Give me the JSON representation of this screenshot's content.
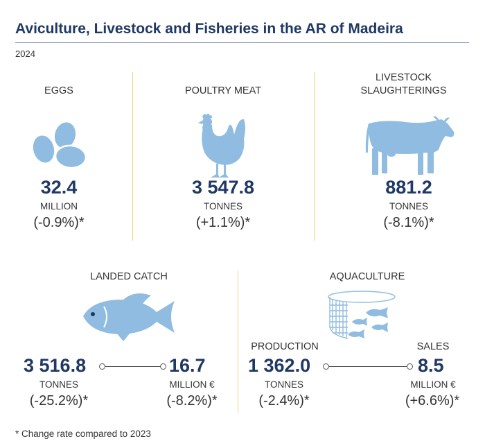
{
  "title": "Aviculture, Livestock and Fisheries in the AR of Madeira",
  "year": "2024",
  "colors": {
    "icon": "#8fbce0",
    "accent": "#f2d27a",
    "text": "#1f3864"
  },
  "cards": {
    "eggs": {
      "label": "EGGS",
      "value": "32.4",
      "unit": "MILLION",
      "change": "(-0.9%)*",
      "icon": "eggs-icon"
    },
    "poultry": {
      "label": "POULTRY MEAT",
      "value": "3 547.8",
      "unit": "TONNES",
      "change": "(+1.1%)*",
      "icon": "chicken-icon"
    },
    "livestock": {
      "label_line1": "LIVESTOCK",
      "label_line2": "SLAUGHTERINGS",
      "value": "881.2",
      "unit": "TONNES",
      "change": "(-8.1%)*",
      "icon": "cow-icon"
    },
    "landed_catch": {
      "label": "LANDED CATCH",
      "icon": "fish-icon",
      "left": {
        "value": "3 516.8",
        "unit": "TONNES",
        "change": "(-25.2%)*"
      },
      "right": {
        "value": "16.7",
        "unit": "MILLION €",
        "change": "(-8.2%)*"
      }
    },
    "aquaculture": {
      "label": "AQUACULTURE",
      "icon": "fish-farm-icon",
      "left": {
        "sub_label": "PRODUCTION",
        "value": "1 362.0",
        "unit": "TONNES",
        "change": "(-2.4%)*"
      },
      "right": {
        "sub_label": "SALES",
        "value": "8.5",
        "unit": "MILLION €",
        "change": "(+6.6%)*"
      }
    }
  },
  "footnote": "* Change rate compared to 2023"
}
